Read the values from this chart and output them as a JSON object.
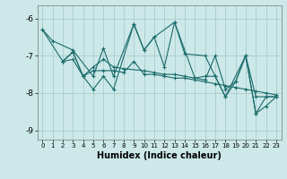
{
  "xlabel": "Humidex (Indice chaleur)",
  "xlim": [
    -0.5,
    23.5
  ],
  "ylim": [
    -9.25,
    -5.65
  ],
  "yticks": [
    -9,
    -8,
    -7,
    -6
  ],
  "xticks": [
    0,
    1,
    2,
    3,
    4,
    5,
    6,
    7,
    8,
    9,
    10,
    11,
    12,
    13,
    14,
    15,
    16,
    17,
    18,
    19,
    20,
    21,
    22,
    23
  ],
  "bg_color": "#cce8e8",
  "grid_color": "#aacccc",
  "line_color": "#1a6b6b",
  "lines": [
    {
      "x": [
        0,
        1,
        3,
        5,
        6,
        7,
        9,
        10,
        11,
        13,
        14,
        16,
        17,
        18,
        20,
        21,
        22,
        23
      ],
      "y": [
        -6.3,
        -6.6,
        -6.85,
        -7.55,
        -6.8,
        -7.55,
        -6.15,
        -6.85,
        -6.5,
        -6.1,
        -6.95,
        -7.0,
        -7.55,
        -8.1,
        -7.0,
        -8.1,
        -8.1,
        -8.1
      ]
    },
    {
      "x": [
        0,
        2,
        3,
        4,
        5,
        6,
        7,
        8,
        10,
        11,
        12,
        13,
        14,
        15,
        16,
        17,
        18,
        19,
        20,
        21,
        22,
        23
      ],
      "y": [
        -6.3,
        -7.15,
        -6.9,
        -7.55,
        -7.3,
        -7.1,
        -7.3,
        -7.35,
        -7.4,
        -7.45,
        -7.5,
        -7.5,
        -7.55,
        -7.6,
        -7.65,
        -7.0,
        -7.9,
        -7.7,
        -7.0,
        -8.55,
        -8.1,
        -8.1
      ]
    },
    {
      "x": [
        2,
        3,
        4,
        5,
        6,
        7,
        9,
        10,
        11,
        12,
        13,
        15,
        16,
        17,
        18,
        19,
        20,
        21,
        22,
        23
      ],
      "y": [
        -7.15,
        -6.9,
        -7.55,
        -7.9,
        -7.55,
        -7.9,
        -6.15,
        -6.85,
        -6.5,
        -7.3,
        -6.1,
        -7.6,
        -7.55,
        -7.55,
        -8.1,
        -7.7,
        -7.0,
        -8.55,
        -8.35,
        -8.1
      ]
    },
    {
      "x": [
        2,
        3,
        4,
        5,
        6,
        7,
        8,
        9,
        10,
        11,
        12,
        13,
        14,
        15,
        16,
        17,
        18,
        19,
        20,
        21,
        22,
        23
      ],
      "y": [
        -7.15,
        -7.1,
        -7.55,
        -7.4,
        -7.4,
        -7.4,
        -7.45,
        -7.15,
        -7.5,
        -7.5,
        -7.55,
        -7.6,
        -7.6,
        -7.65,
        -7.7,
        -7.75,
        -7.8,
        -7.85,
        -7.9,
        -7.95,
        -8.0,
        -8.05
      ]
    }
  ]
}
